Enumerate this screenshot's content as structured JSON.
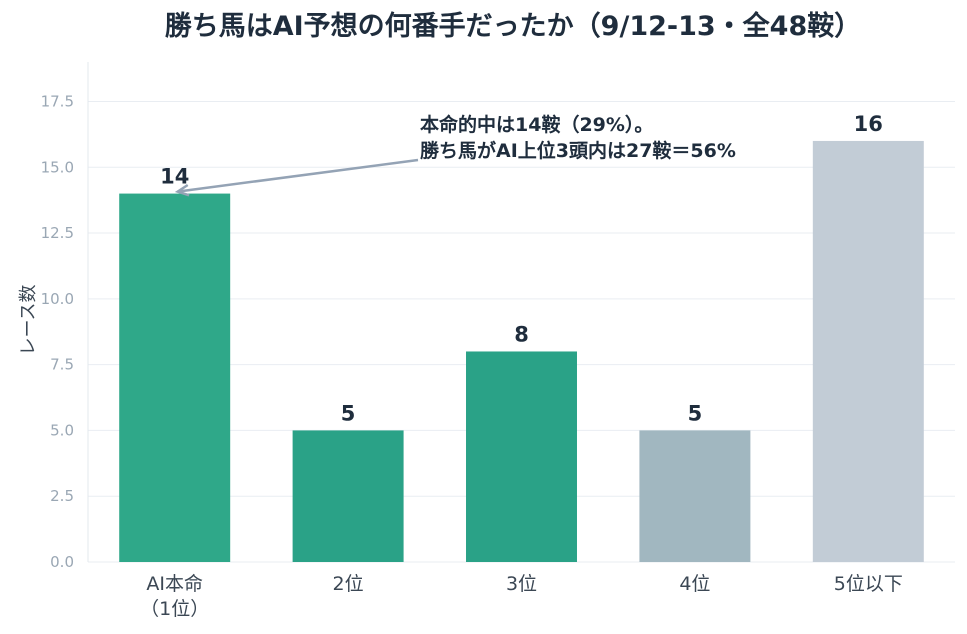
{
  "chart_data": {
    "type": "bar",
    "title": "勝ち馬はAI予想の何番手だったか（9/12-13・全48鞍）",
    "xlabel": "",
    "ylabel": "レース数",
    "categories": [
      [
        "AI本命",
        "（1位）"
      ],
      [
        "2位"
      ],
      [
        "3位"
      ],
      [
        "4位"
      ],
      [
        "5位以下"
      ]
    ],
    "values": [
      14,
      5,
      8,
      5,
      16
    ],
    "bar_colors": [
      "#2fa889",
      "#2aa287",
      "#2aa287",
      "#a1b7c0",
      "#c2ccd6"
    ],
    "ylim": [
      0,
      19
    ],
    "yticks": [
      "0.0",
      "2.5",
      "5.0",
      "7.5",
      "10.0",
      "12.5",
      "15.0",
      "17.5"
    ],
    "grid": true,
    "annotation": {
      "lines": [
        "本命的中は14鞍（29%）。",
        "勝ち馬がAI上位3頭内は27鞍＝56%"
      ],
      "target_category_index": 0
    }
  }
}
